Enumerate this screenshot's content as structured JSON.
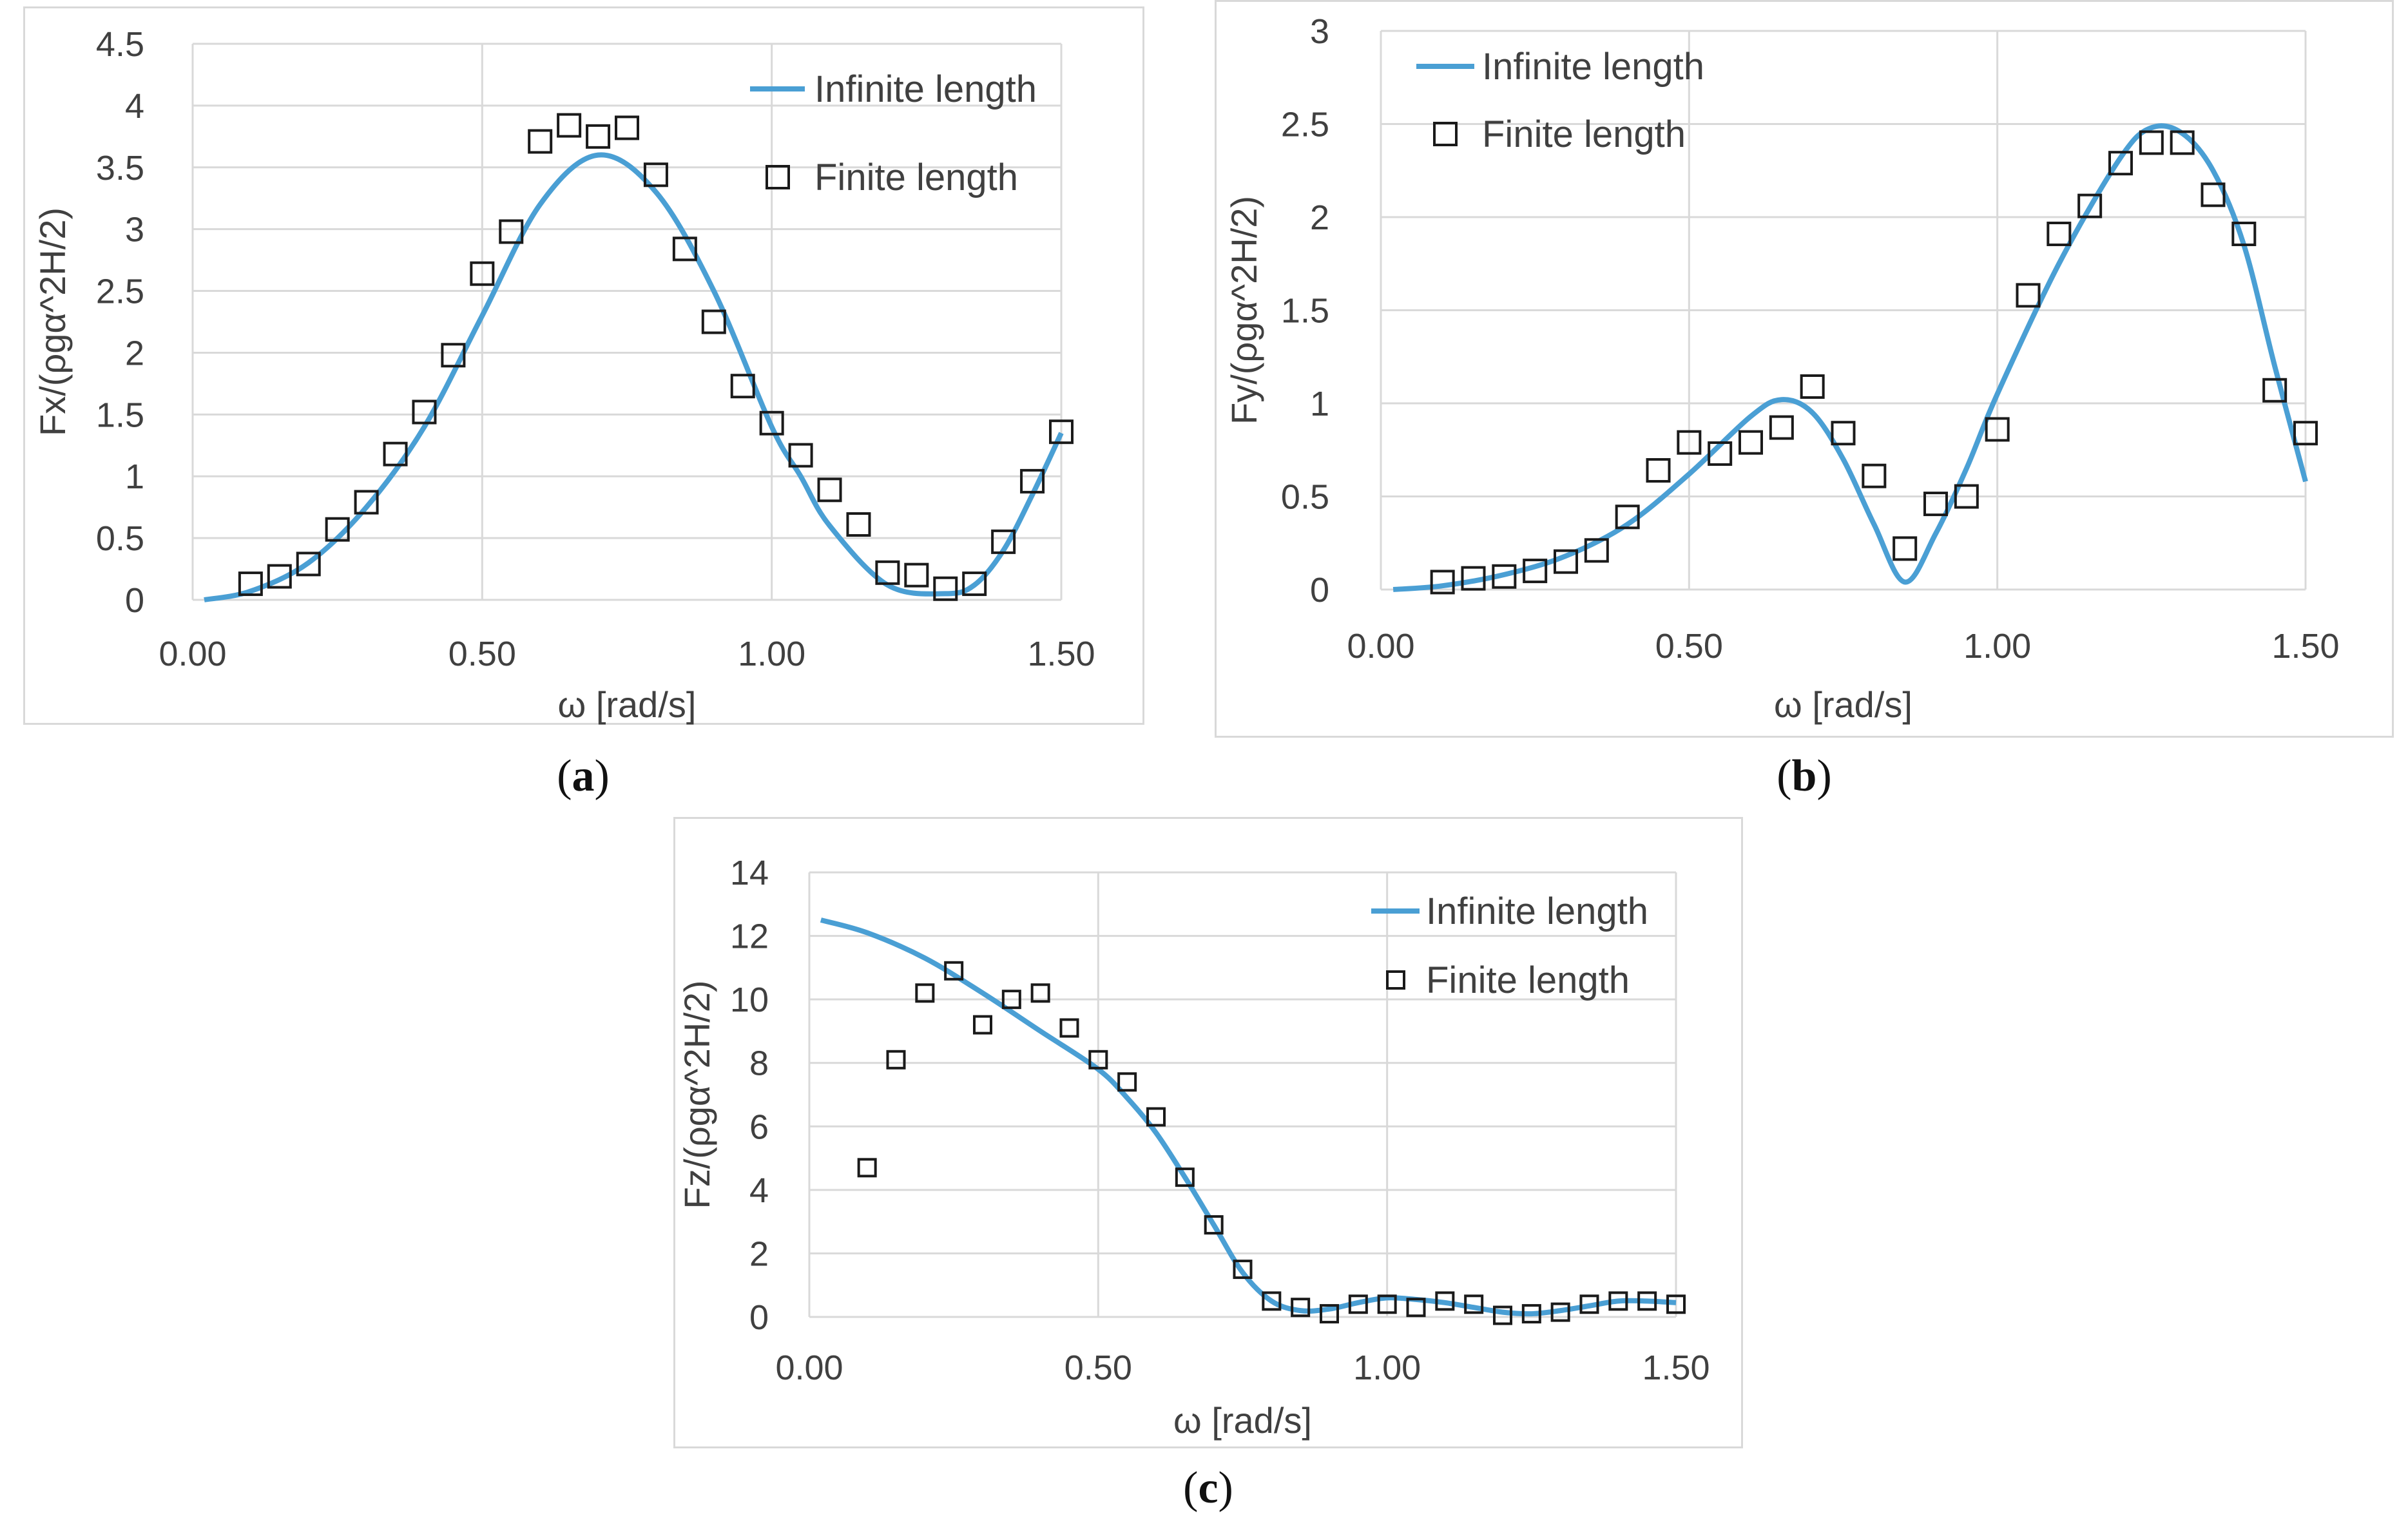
{
  "captions": [
    "a",
    "b",
    "c"
  ],
  "chart_data": [
    {
      "type": "line",
      "id": "a",
      "xlabel": "ω [rad/s]",
      "ylabel": "Fx/(ρgα^2H/2)",
      "xlim": [
        0,
        1.5
      ],
      "ylim": [
        0,
        4.5
      ],
      "xticks": [
        "0.00",
        "0.50",
        "1.00",
        "1.50"
      ],
      "yticks": [
        "0",
        "0.5",
        "1",
        "1.5",
        "2",
        "2.5",
        "3",
        "3.5",
        "4",
        "4.5"
      ],
      "legend_position": "top-right",
      "color": "#4a9fd4",
      "series": [
        {
          "name": "Infinite length",
          "style": "line",
          "x": [
            0.02,
            0.1,
            0.2,
            0.3,
            0.4,
            0.5,
            0.6,
            0.7,
            0.8,
            0.9,
            1.0,
            1.05,
            1.1,
            1.2,
            1.3,
            1.35,
            1.4,
            1.45,
            1.5
          ],
          "y": [
            0.0,
            0.07,
            0.3,
            0.75,
            1.4,
            2.3,
            3.2,
            3.6,
            3.3,
            2.5,
            1.4,
            1.0,
            0.6,
            0.12,
            0.05,
            0.12,
            0.4,
            0.85,
            1.35
          ]
        },
        {
          "name": "Finite length",
          "style": "square",
          "x": [
            0.1,
            0.15,
            0.2,
            0.25,
            0.3,
            0.35,
            0.4,
            0.45,
            0.5,
            0.55,
            0.6,
            0.65,
            0.7,
            0.75,
            0.8,
            0.85,
            0.9,
            0.95,
            1.0,
            1.05,
            1.1,
            1.15,
            1.2,
            1.25,
            1.3,
            1.35,
            1.4,
            1.45,
            1.5
          ],
          "y": [
            0.13,
            0.19,
            0.29,
            0.57,
            0.79,
            1.18,
            1.52,
            1.98,
            2.64,
            2.98,
            3.71,
            3.84,
            3.75,
            3.82,
            3.44,
            2.84,
            2.25,
            1.73,
            1.43,
            1.17,
            0.89,
            0.61,
            0.22,
            0.2,
            0.09,
            0.13,
            0.47,
            0.96,
            1.36
          ]
        }
      ]
    },
    {
      "type": "line",
      "id": "b",
      "xlabel": "ω [rad/s]",
      "ylabel": "Fy/(ρgα^2H/2)",
      "xlim": [
        0,
        1.5
      ],
      "ylim": [
        0,
        3
      ],
      "xticks": [
        "0.00",
        "0.50",
        "1.00",
        "1.50"
      ],
      "yticks": [
        "0",
        "0.5",
        "1",
        "1.5",
        "2",
        "2.5",
        "3"
      ],
      "legend_position": "top-left",
      "color": "#4a9fd4",
      "series": [
        {
          "name": "Infinite length",
          "style": "line",
          "x": [
            0.02,
            0.1,
            0.2,
            0.3,
            0.4,
            0.5,
            0.6,
            0.65,
            0.7,
            0.75,
            0.8,
            0.85,
            0.9,
            0.95,
            1.0,
            1.1,
            1.2,
            1.25,
            1.3,
            1.35,
            1.4,
            1.45,
            1.5
          ],
          "y": [
            0.0,
            0.02,
            0.08,
            0.18,
            0.35,
            0.62,
            0.93,
            1.02,
            0.95,
            0.7,
            0.35,
            0.04,
            0.3,
            0.65,
            1.05,
            1.75,
            2.32,
            2.48,
            2.45,
            2.25,
            1.85,
            1.2,
            0.58
          ]
        },
        {
          "name": "Finite length",
          "style": "square",
          "x": [
            0.1,
            0.15,
            0.2,
            0.25,
            0.3,
            0.35,
            0.4,
            0.45,
            0.5,
            0.55,
            0.6,
            0.65,
            0.7,
            0.75,
            0.8,
            0.85,
            0.9,
            0.95,
            1.0,
            1.05,
            1.1,
            1.15,
            1.2,
            1.25,
            1.3,
            1.35,
            1.4,
            1.45,
            1.5
          ],
          "y": [
            0.04,
            0.06,
            0.07,
            0.1,
            0.15,
            0.21,
            0.39,
            0.64,
            0.79,
            0.73,
            0.79,
            0.87,
            1.09,
            0.84,
            0.61,
            0.22,
            0.46,
            0.5,
            0.86,
            1.58,
            1.91,
            2.06,
            2.29,
            2.4,
            2.4,
            2.12,
            1.91,
            1.07,
            0.84
          ]
        }
      ]
    },
    {
      "type": "line",
      "id": "c",
      "xlabel": "ω  [rad/s]",
      "ylabel": "Fz/(ρgα^2H/2)",
      "xlim": [
        0,
        1.5
      ],
      "ylim": [
        0,
        14
      ],
      "xticks": [
        "0.00",
        "0.50",
        "1.00",
        "1.50"
      ],
      "yticks": [
        "0",
        "2",
        "4",
        "6",
        "8",
        "10",
        "12",
        "14"
      ],
      "legend_position": "top-right",
      "color": "#4a9fd4",
      "series": [
        {
          "name": "Infinite length",
          "style": "line",
          "x": [
            0.02,
            0.1,
            0.2,
            0.3,
            0.4,
            0.5,
            0.55,
            0.6,
            0.65,
            0.7,
            0.75,
            0.8,
            0.85,
            0.9,
            0.95,
            1.0,
            1.05,
            1.1,
            1.15,
            1.2,
            1.25,
            1.3,
            1.35,
            1.4,
            1.45,
            1.5
          ],
          "y": [
            12.5,
            12.1,
            11.3,
            10.2,
            9.0,
            7.8,
            6.9,
            5.8,
            4.4,
            2.9,
            1.4,
            0.5,
            0.2,
            0.25,
            0.45,
            0.6,
            0.55,
            0.45,
            0.3,
            0.15,
            0.1,
            0.2,
            0.35,
            0.5,
            0.5,
            0.45
          ]
        },
        {
          "name": "Finite length",
          "style": "square",
          "x": [
            0.1,
            0.15,
            0.2,
            0.25,
            0.3,
            0.35,
            0.4,
            0.45,
            0.5,
            0.55,
            0.6,
            0.65,
            0.7,
            0.75,
            0.8,
            0.85,
            0.9,
            0.95,
            1.0,
            1.05,
            1.1,
            1.15,
            1.2,
            1.25,
            1.3,
            1.35,
            1.4,
            1.45,
            1.5
          ],
          "y": [
            4.7,
            8.1,
            10.2,
            10.9,
            9.2,
            10.0,
            10.2,
            9.1,
            8.1,
            7.4,
            6.3,
            4.4,
            2.9,
            1.5,
            0.5,
            0.3,
            0.1,
            0.4,
            0.4,
            0.3,
            0.5,
            0.4,
            0.05,
            0.1,
            0.15,
            0.4,
            0.5,
            0.5,
            0.4
          ]
        }
      ]
    }
  ]
}
